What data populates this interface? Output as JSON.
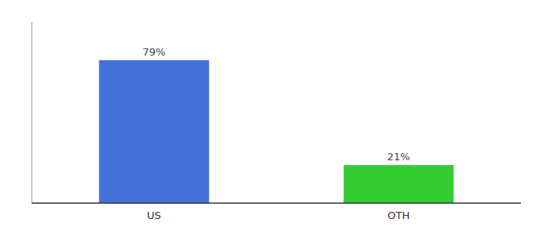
{
  "chart_data": {
    "type": "bar",
    "categories": [
      "US",
      "OTH"
    ],
    "values": [
      79,
      21
    ],
    "value_labels": [
      "79%",
      "21%"
    ],
    "colors": [
      "#4472db",
      "#33cc33"
    ],
    "ylim": [
      0,
      100
    ],
    "grid": false,
    "data_labels": true,
    "tick_labels": "x"
  }
}
